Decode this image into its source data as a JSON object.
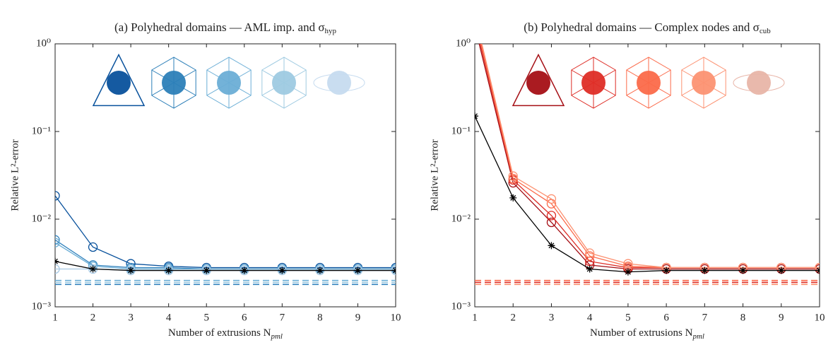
{
  "chart_data": [
    {
      "type": "line",
      "title": "(a) Polyhedral domains — AML imp. and σ",
      "title_subscript": "hyp",
      "xlabel": "Number of extrusions N",
      "xlabel_subscript": "pml",
      "ylabel": "Relative L²-error",
      "yscale": "log",
      "xlim": [
        1,
        10
      ],
      "xticks": [
        1,
        2,
        3,
        4,
        5,
        6,
        7,
        8,
        9,
        10
      ],
      "ylim": [
        0.001,
        1
      ],
      "yticks": [
        {
          "value": 0.001,
          "label": "10⁻³"
        },
        {
          "value": 0.01,
          "label": "10⁻²"
        },
        {
          "value": 0.1,
          "label": "10⁻¹"
        },
        {
          "value": 1,
          "label": "10⁰"
        }
      ],
      "x": [
        1,
        2,
        3,
        4,
        5,
        6,
        7,
        8,
        9,
        10
      ],
      "series": [
        {
          "color": "#08519c",
          "marker": "o",
          "values": [
            0.0185,
            0.0048,
            0.0031,
            0.0029,
            0.0028,
            0.0028,
            0.0028,
            0.0028,
            0.0028,
            0.0028
          ]
        },
        {
          "color": "#3182bd",
          "marker": "o",
          "values": [
            0.0058,
            0.003,
            0.0028,
            0.0028,
            0.0027,
            0.0027,
            0.0027,
            0.0027,
            0.0027,
            0.0027
          ]
        },
        {
          "color": "#6baed6",
          "marker": "o",
          "values": [
            0.0054,
            0.0029,
            0.0027,
            0.0027,
            0.0027,
            0.0027,
            0.0027,
            0.0027,
            0.0027,
            0.0027
          ]
        },
        {
          "color": "#a6c8e4",
          "marker": "o",
          "values": [
            0.0027,
            0.0027,
            0.0026,
            0.0026,
            0.0026,
            0.0026,
            0.0026,
            0.0026,
            0.0026,
            0.0026
          ]
        },
        {
          "color": "#000000",
          "marker": "*",
          "values": [
            0.0033,
            0.0027,
            0.0026,
            0.0026,
            0.0026,
            0.0026,
            0.0026,
            0.0026,
            0.0026,
            0.0026
          ]
        }
      ],
      "reference_lines": [
        {
          "value": 0.002,
          "color": "#6baed6"
        },
        {
          "value": 0.0019,
          "color": "#9ecae1"
        },
        {
          "value": 0.0018,
          "color": "#3182bd"
        }
      ]
    },
    {
      "type": "line",
      "title": "(b) Polyhedral domains — Complex nodes and σ",
      "title_subscript": "cub",
      "xlabel": "Number of extrusions N",
      "xlabel_subscript": "pml",
      "ylabel": "Relative L²-error",
      "yscale": "log",
      "xlim": [
        1,
        10
      ],
      "xticks": [
        1,
        2,
        3,
        4,
        5,
        6,
        7,
        8,
        9,
        10
      ],
      "ylim": [
        0.001,
        1
      ],
      "yticks": [
        {
          "value": 0.001,
          "label": "10⁻³"
        },
        {
          "value": 0.01,
          "label": "10⁻²"
        },
        {
          "value": 0.1,
          "label": "10⁻¹"
        },
        {
          "value": 1,
          "label": "10⁰"
        }
      ],
      "x": [
        1,
        2,
        3,
        4,
        5,
        6,
        7,
        8,
        9,
        10
      ],
      "series": [
        {
          "color": "#a50f15",
          "marker": "o",
          "values": [
            1.6,
            0.026,
            0.0092,
            0.003,
            0.0027,
            0.0027,
            0.0027,
            0.0027,
            0.0027,
            0.0027
          ]
        },
        {
          "color": "#de2d26",
          "marker": "o",
          "values": [
            1.8,
            0.028,
            0.011,
            0.0033,
            0.0028,
            0.0028,
            0.0028,
            0.0028,
            0.0028,
            0.0028
          ]
        },
        {
          "color": "#fb6a4a",
          "marker": "o",
          "values": [
            2.0,
            0.029,
            0.015,
            0.0038,
            0.0029,
            0.0028,
            0.0028,
            0.0028,
            0.0028,
            0.0028
          ]
        },
        {
          "color": "#fc9272",
          "marker": "o",
          "values": [
            2.2,
            0.031,
            0.017,
            0.0041,
            0.0031,
            0.0028,
            0.0028,
            0.0028,
            0.0028,
            0.0028
          ]
        },
        {
          "color": "#000000",
          "marker": "*",
          "values": [
            0.15,
            0.0175,
            0.005,
            0.0027,
            0.0025,
            0.0026,
            0.0026,
            0.0026,
            0.0026,
            0.0026
          ]
        }
      ],
      "reference_lines": [
        {
          "value": 0.002,
          "color": "#fb6a4a"
        },
        {
          "value": 0.0019,
          "color": "#de2d26"
        },
        {
          "value": 0.0018,
          "color": "#fc9272"
        }
      ]
    }
  ]
}
